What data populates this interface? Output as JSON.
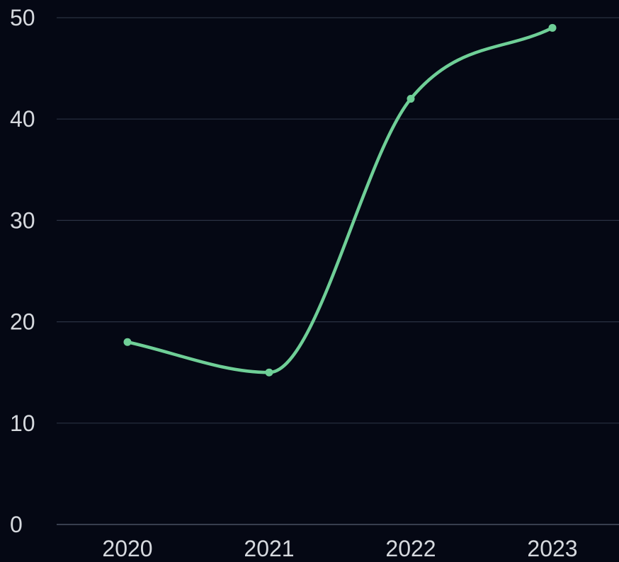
{
  "chart_data": {
    "type": "line",
    "title": "",
    "xlabel": "",
    "ylabel": "",
    "x": [
      "2020",
      "2021",
      "2022",
      "2023"
    ],
    "series": [
      {
        "values": [
          18,
          15,
          42,
          49
        ]
      }
    ],
    "ylim": [
      0,
      50
    ],
    "yticks": [
      "0",
      "10",
      "20",
      "30",
      "40",
      "50"
    ],
    "grid": true,
    "line_style": "smooth",
    "colors": {
      "background": "#050814",
      "line": "#6fcf97",
      "grid": "#2a3142",
      "text": "#d6d9de"
    }
  }
}
